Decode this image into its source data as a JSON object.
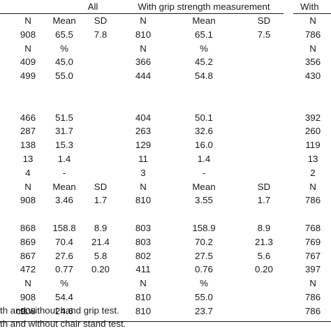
{
  "groups": [
    "All",
    "With grip strength measurement",
    "With"
  ],
  "rows": [
    {
      "label": "",
      "cells": [
        "N",
        "Mean",
        "SD",
        "N",
        "Mean",
        "SD",
        "N"
      ]
    },
    {
      "label": "",
      "cells": [
        "908",
        "65.5",
        "7.8",
        "810",
        "65.1",
        "7.5",
        "786"
      ]
    },
    {
      "label": "",
      "cells": [
        "N",
        "%",
        "",
        "N",
        "%",
        "",
        "N"
      ]
    },
    {
      "label": "",
      "cells": [
        "409",
        "45.0",
        "",
        "366",
        "45.2",
        "",
        "356"
      ]
    },
    {
      "label": "",
      "cells": [
        "499",
        "55.0",
        "",
        "444",
        "54.8",
        "",
        "430"
      ]
    },
    {
      "label": "",
      "cells": [
        "",
        "",
        "",
        "",
        "",
        "",
        ""
      ]
    },
    {
      "label": "",
      "cells": [
        "",
        "",
        "",
        "",
        "",
        "",
        ""
      ]
    },
    {
      "label": "",
      "cells": [
        "466",
        "51.5",
        "",
        "404",
        "50.1",
        "",
        "392"
      ]
    },
    {
      "label": "",
      "cells": [
        "287",
        "31.7",
        "",
        "263",
        "32.6",
        "",
        "260"
      ]
    },
    {
      "label": "",
      "cells": [
        "138",
        "15.3",
        "",
        "129",
        "16.0",
        "",
        "119"
      ]
    },
    {
      "label": "",
      "cells": [
        "13",
        "1.4",
        "",
        "11",
        "1.4",
        "",
        "13"
      ]
    },
    {
      "label": "",
      "cells": [
        "4",
        "-",
        "",
        "3",
        "-",
        "",
        "2"
      ]
    },
    {
      "label": "",
      "cells": [
        "N",
        "Mean",
        "SD",
        "N",
        "Mean",
        "SD",
        "N"
      ]
    },
    {
      "label": "",
      "cells": [
        "908",
        "3.46",
        "1.7",
        "810",
        "3.55",
        "1.7",
        "786"
      ]
    },
    {
      "label": "",
      "cells": [
        "",
        "",
        "",
        "",
        "",
        "",
        ""
      ]
    },
    {
      "label": "",
      "cells": [
        "868",
        "158.8",
        "8.9",
        "803",
        "158.9",
        "8.9",
        "768"
      ]
    },
    {
      "label": "",
      "cells": [
        "869",
        "70.4",
        "21.4",
        "803",
        "70.2",
        "21.3",
        "769"
      ]
    },
    {
      "label": "",
      "cells": [
        "867",
        "27.6",
        "5.8",
        "802",
        "27.5",
        "5.6",
        "767"
      ]
    },
    {
      "label": "",
      "cells": [
        "472",
        "0.77",
        "0.20",
        "411",
        "0.76",
        "0.20",
        "397"
      ]
    },
    {
      "label": "",
      "cells": [
        "N",
        "%",
        "",
        "N",
        "%",
        "",
        "N"
      ]
    },
    {
      "label": "",
      "cells": [
        "908",
        "54.4",
        "",
        "810",
        "55.0",
        "",
        "786"
      ]
    },
    {
      "label": "cts",
      "cells": [
        "908",
        "24.6",
        "",
        "810",
        "23.7",
        "",
        "786"
      ]
    }
  ],
  "footnotes": [
    "th and without hand grip test.",
    "th and without chair stand test."
  ]
}
